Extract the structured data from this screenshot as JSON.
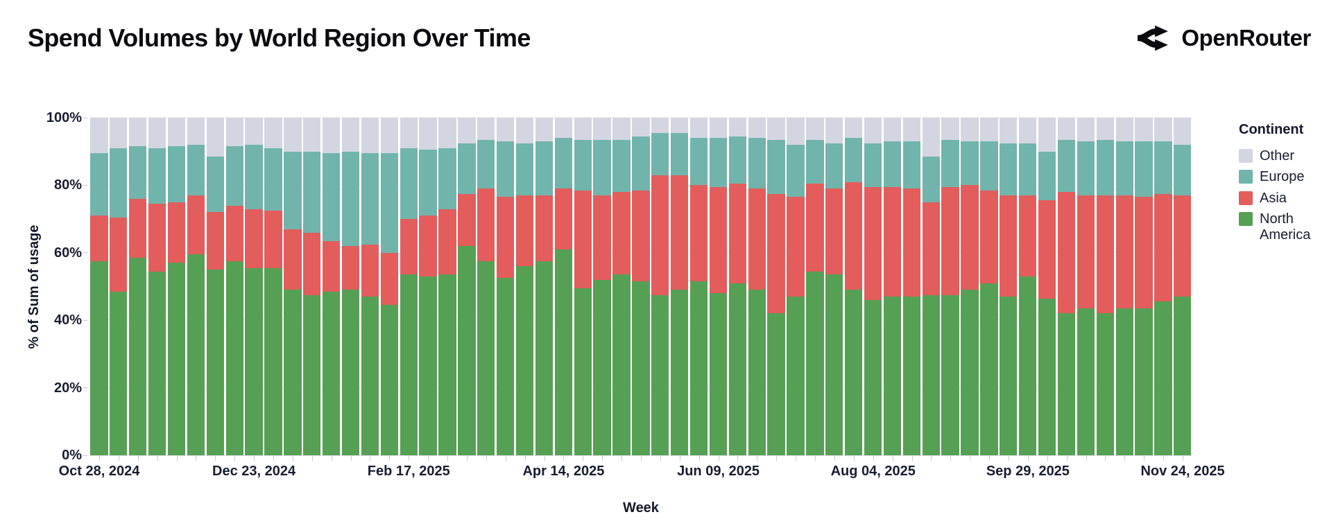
{
  "header": {
    "title": "Spend Volumes by World Region Over Time",
    "brand": "OpenRouter"
  },
  "chart_data": {
    "type": "bar",
    "variant": "stacked-100-percent-column",
    "title": "Spend Volumes by World Region Over Time",
    "xlabel": "Week",
    "ylabel": "% of Sum of usage",
    "ylim": [
      0,
      100
    ],
    "grid": "horizontal-faint",
    "y_tick_values": [
      0,
      20,
      40,
      60,
      80,
      100
    ],
    "y_tick_labels": [
      "0%",
      "20%",
      "40%",
      "60%",
      "80%",
      "100%"
    ],
    "x_labeled_tick_indices": [
      0,
      8,
      16,
      24,
      32,
      40,
      48,
      56
    ],
    "x_tick_labels_shown": [
      "Oct 28, 2024",
      "Dec 23, 2024",
      "Feb 17, 2025",
      "Apr 14, 2025",
      "Jun 09, 2025",
      "Aug 04, 2025",
      "Sep 29, 2025",
      "Nov 24, 2025"
    ],
    "legend": {
      "title": "Continent",
      "position": "right",
      "entries_top_to_bottom": [
        "Other",
        "Europe",
        "Asia",
        "North America"
      ]
    },
    "colors": {
      "North America": "#55a054",
      "Asia": "#e25d5c",
      "Europe": "#71b4ac",
      "Other": "#d3d5e1"
    },
    "stack_order_bottom_to_top": [
      "North America",
      "Asia",
      "Europe",
      "Other"
    ],
    "categories": [
      "Oct 28, 2024",
      "Nov 04, 2024",
      "Nov 11, 2024",
      "Nov 18, 2024",
      "Nov 25, 2024",
      "Dec 02, 2024",
      "Dec 09, 2024",
      "Dec 16, 2024",
      "Dec 23, 2024",
      "Dec 30, 2024",
      "Jan 06, 2025",
      "Jan 13, 2025",
      "Jan 20, 2025",
      "Jan 27, 2025",
      "Feb 03, 2025",
      "Feb 10, 2025",
      "Feb 17, 2025",
      "Feb 24, 2025",
      "Mar 03, 2025",
      "Mar 10, 2025",
      "Mar 17, 2025",
      "Mar 24, 2025",
      "Mar 31, 2025",
      "Apr 07, 2025",
      "Apr 14, 2025",
      "Apr 21, 2025",
      "Apr 28, 2025",
      "May 05, 2025",
      "May 12, 2025",
      "May 19, 2025",
      "May 26, 2025",
      "Jun 02, 2025",
      "Jun 09, 2025",
      "Jun 16, 2025",
      "Jun 23, 2025",
      "Jun 30, 2025",
      "Jul 07, 2025",
      "Jul 14, 2025",
      "Jul 21, 2025",
      "Jul 28, 2025",
      "Aug 04, 2025",
      "Aug 11, 2025",
      "Aug 18, 2025",
      "Aug 25, 2025",
      "Sep 01, 2025",
      "Sep 08, 2025",
      "Sep 15, 2025",
      "Sep 22, 2025",
      "Sep 29, 2025",
      "Oct 06, 2025",
      "Oct 13, 2025",
      "Oct 20, 2025",
      "Oct 27, 2025",
      "Nov 03, 2025",
      "Nov 10, 2025",
      "Nov 17, 2025",
      "Nov 24, 2025"
    ],
    "series": [
      {
        "name": "North America",
        "values": [
          57.5,
          48.5,
          58.5,
          54.5,
          57,
          59.5,
          55,
          57.5,
          55.5,
          55.5,
          49,
          47.5,
          48.5,
          49,
          47,
          44.5,
          53.5,
          53,
          53.5,
          62,
          57.5,
          52.5,
          56,
          57.5,
          61,
          49.5,
          52,
          53.5,
          51.5,
          47.5,
          49,
          51.5,
          48,
          51,
          49,
          42,
          47,
          54.5,
          53.5,
          49,
          46,
          47,
          47,
          47.5,
          47.5,
          49,
          51,
          47,
          53,
          46.5,
          42,
          43.5,
          42,
          43.5,
          43.5,
          45.5,
          47
        ]
      },
      {
        "name": "Asia",
        "values": [
          13.5,
          22,
          17.5,
          20,
          18,
          17.5,
          17,
          16.5,
          17.5,
          17,
          18,
          18.5,
          15,
          13,
          15.5,
          15.5,
          16.5,
          18,
          19.5,
          15.5,
          21.5,
          24,
          21,
          19.5,
          18,
          29,
          25,
          24.5,
          27,
          35.5,
          34,
          28.5,
          31.5,
          29.5,
          30,
          35.5,
          29.5,
          26,
          25.5,
          32,
          33.5,
          32.5,
          32,
          27.5,
          32,
          31,
          27.5,
          30,
          24,
          29,
          36,
          33.5,
          35,
          33.5,
          33,
          32,
          30
        ]
      },
      {
        "name": "Europe",
        "values": [
          18.5,
          20.5,
          15.5,
          16.5,
          16.5,
          15,
          16.5,
          17.5,
          19,
          18.5,
          23,
          24,
          26,
          28,
          27,
          29.5,
          21,
          19.5,
          18,
          15,
          14.5,
          16.5,
          15.5,
          16,
          15,
          15,
          16.5,
          15.5,
          16,
          12.5,
          12.5,
          14,
          14.5,
          14,
          15,
          16,
          15.5,
          13,
          13.5,
          13,
          13,
          13.5,
          14,
          13.5,
          14,
          13,
          14.5,
          15.5,
          15.5,
          14.5,
          15.5,
          16,
          16.5,
          16,
          16.5,
          15.5,
          15
        ]
      },
      {
        "name": "Other",
        "values": [
          10.5,
          9,
          8.5,
          9,
          8.5,
          8,
          11.5,
          8.5,
          8,
          9,
          10,
          10,
          10.5,
          10,
          10.5,
          10.5,
          9,
          9.5,
          9,
          7.5,
          6.5,
          7,
          7.5,
          7,
          6,
          6.5,
          6.5,
          6.5,
          5.5,
          4.5,
          4.5,
          6,
          6,
          5.5,
          6,
          6.5,
          8,
          6.5,
          7.5,
          6,
          7.5,
          7,
          7,
          11.5,
          6.5,
          7,
          7,
          7.5,
          7.5,
          10,
          6.5,
          7,
          6.5,
          7,
          7,
          7,
          8
        ]
      }
    ]
  }
}
